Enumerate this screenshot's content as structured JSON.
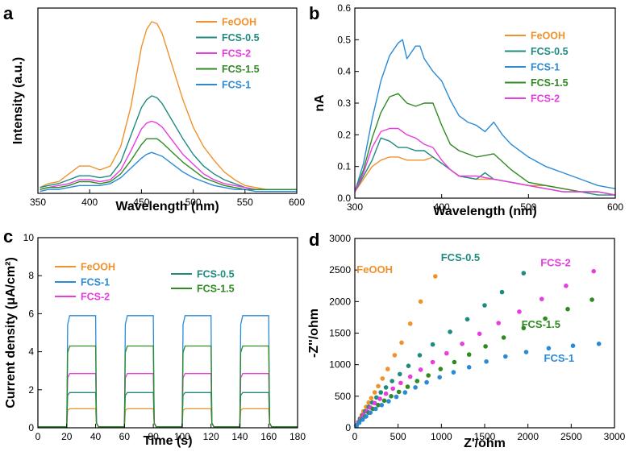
{
  "colors": {
    "FeOOH": "#f0922b",
    "FCS-0.5": "#1f8a80",
    "FCS-2": "#e83ce0",
    "FCS-1.5": "#2f8a22",
    "FCS-1": "#2b8ad6"
  },
  "chart_data": [
    {
      "panel": "a",
      "type": "line",
      "xlabel": "Wavelength (nm)",
      "ylabel": "Intensity (a.u.)",
      "xlim": [
        350,
        600
      ],
      "xticks": [
        350,
        400,
        450,
        500,
        550,
        600
      ],
      "yticks_shown": false,
      "legend_position": "top-right",
      "legend": [
        "FeOOH",
        "FCS-0.5",
        "FCS-2",
        "FCS-1.5",
        "FCS-1"
      ],
      "series": [
        {
          "name": "FeOOH",
          "x": [
            352,
            360,
            370,
            380,
            390,
            400,
            410,
            420,
            430,
            440,
            450,
            455,
            460,
            465,
            470,
            480,
            490,
            500,
            510,
            520,
            530,
            540,
            550,
            560,
            570,
            580,
            590,
            600
          ],
          "y": [
            0.03,
            0.05,
            0.06,
            0.1,
            0.14,
            0.14,
            0.12,
            0.14,
            0.24,
            0.45,
            0.75,
            0.84,
            0.88,
            0.87,
            0.82,
            0.65,
            0.48,
            0.34,
            0.24,
            0.17,
            0.11,
            0.07,
            0.04,
            0.03,
            0.02,
            0.02,
            0.02,
            0.02
          ]
        },
        {
          "name": "FCS-0.5",
          "x": [
            352,
            360,
            370,
            380,
            390,
            400,
            410,
            420,
            430,
            440,
            450,
            455,
            460,
            465,
            470,
            480,
            490,
            500,
            510,
            520,
            530,
            540,
            550,
            560,
            570,
            580,
            590,
            600
          ],
          "y": [
            0.03,
            0.04,
            0.05,
            0.07,
            0.09,
            0.09,
            0.08,
            0.09,
            0.16,
            0.3,
            0.44,
            0.48,
            0.5,
            0.49,
            0.46,
            0.37,
            0.28,
            0.2,
            0.14,
            0.1,
            0.07,
            0.05,
            0.03,
            0.02,
            0.02,
            0.02,
            0.02,
            0.02
          ]
        },
        {
          "name": "FCS-2",
          "x": [
            352,
            360,
            370,
            380,
            390,
            400,
            410,
            420,
            430,
            440,
            450,
            455,
            460,
            465,
            470,
            480,
            490,
            500,
            510,
            520,
            530,
            540,
            550,
            560,
            570,
            580,
            590,
            600
          ],
          "y": [
            0.02,
            0.03,
            0.04,
            0.05,
            0.07,
            0.07,
            0.06,
            0.07,
            0.12,
            0.22,
            0.33,
            0.36,
            0.37,
            0.36,
            0.34,
            0.27,
            0.2,
            0.15,
            0.1,
            0.07,
            0.05,
            0.04,
            0.03,
            0.02,
            0.02,
            0.02,
            0.02,
            0.02
          ]
        },
        {
          "name": "FCS-1.5",
          "x": [
            352,
            360,
            370,
            380,
            390,
            400,
            410,
            420,
            430,
            440,
            450,
            455,
            460,
            465,
            470,
            480,
            490,
            500,
            510,
            520,
            530,
            540,
            550,
            560,
            570,
            580,
            590,
            600
          ],
          "y": [
            0.02,
            0.03,
            0.03,
            0.04,
            0.06,
            0.06,
            0.05,
            0.06,
            0.1,
            0.17,
            0.25,
            0.28,
            0.28,
            0.28,
            0.26,
            0.21,
            0.16,
            0.12,
            0.08,
            0.06,
            0.04,
            0.03,
            0.02,
            0.02,
            0.02,
            0.02,
            0.02,
            0.02
          ]
        },
        {
          "name": "FCS-1",
          "x": [
            352,
            360,
            370,
            380,
            390,
            400,
            410,
            420,
            430,
            440,
            450,
            455,
            460,
            465,
            470,
            480,
            490,
            500,
            510,
            520,
            530,
            540,
            550,
            560,
            570,
            580,
            590,
            600
          ],
          "y": [
            0.01,
            0.02,
            0.02,
            0.03,
            0.04,
            0.04,
            0.04,
            0.05,
            0.08,
            0.13,
            0.18,
            0.2,
            0.21,
            0.2,
            0.19,
            0.15,
            0.11,
            0.08,
            0.06,
            0.04,
            0.03,
            0.02,
            0.02,
            0.01,
            0.01,
            0.01,
            0.01,
            0.01
          ]
        }
      ]
    },
    {
      "panel": "b",
      "type": "line",
      "xlabel": "Wavelength (nm)",
      "ylabel": "nA",
      "xlim": [
        300,
        600
      ],
      "ylim": [
        0,
        0.6
      ],
      "xticks": [
        300,
        400,
        500,
        600
      ],
      "yticks": [
        0.0,
        0.1,
        0.2,
        0.3,
        0.4,
        0.5,
        0.6
      ],
      "legend_position": "top-right",
      "legend": [
        "FeOOH",
        "FCS-0.5",
        "FCS-1",
        "FCS-1.5",
        "FCS-2"
      ],
      "series": [
        {
          "name": "FeOOH",
          "x": [
            300,
            310,
            320,
            330,
            340,
            350,
            360,
            370,
            380,
            390,
            400,
            410,
            420,
            440,
            460,
            480,
            500,
            520,
            540,
            560,
            580,
            600
          ],
          "y": [
            0.02,
            0.06,
            0.1,
            0.12,
            0.13,
            0.13,
            0.12,
            0.12,
            0.12,
            0.13,
            0.11,
            0.09,
            0.07,
            0.06,
            0.06,
            0.05,
            0.04,
            0.04,
            0.03,
            0.02,
            0.02,
            0.01
          ]
        },
        {
          "name": "FCS-0.5",
          "x": [
            300,
            310,
            320,
            330,
            340,
            350,
            360,
            370,
            380,
            390,
            400,
            410,
            420,
            440,
            450,
            460,
            480,
            500,
            520,
            540,
            560,
            580,
            600
          ],
          "y": [
            0.02,
            0.07,
            0.12,
            0.19,
            0.18,
            0.16,
            0.16,
            0.15,
            0.15,
            0.13,
            0.11,
            0.09,
            0.07,
            0.06,
            0.08,
            0.06,
            0.05,
            0.04,
            0.03,
            0.02,
            0.02,
            0.01,
            0.01
          ]
        },
        {
          "name": "FCS-1",
          "x": [
            300,
            310,
            320,
            330,
            340,
            350,
            355,
            360,
            370,
            375,
            380,
            390,
            400,
            410,
            420,
            430,
            440,
            450,
            460,
            470,
            480,
            500,
            520,
            540,
            560,
            580,
            600
          ],
          "y": [
            0.02,
            0.11,
            0.25,
            0.37,
            0.45,
            0.49,
            0.5,
            0.44,
            0.48,
            0.48,
            0.44,
            0.4,
            0.37,
            0.31,
            0.26,
            0.24,
            0.23,
            0.21,
            0.24,
            0.2,
            0.17,
            0.13,
            0.1,
            0.08,
            0.06,
            0.04,
            0.03
          ]
        },
        {
          "name": "FCS-1.5",
          "x": [
            300,
            310,
            320,
            330,
            340,
            350,
            360,
            370,
            380,
            390,
            400,
            410,
            420,
            440,
            460,
            480,
            500,
            520,
            540,
            560,
            580,
            600
          ],
          "y": [
            0.02,
            0.09,
            0.19,
            0.27,
            0.32,
            0.33,
            0.3,
            0.29,
            0.3,
            0.3,
            0.23,
            0.17,
            0.15,
            0.13,
            0.14,
            0.09,
            0.05,
            0.04,
            0.03,
            0.02,
            0.02,
            0.01
          ]
        },
        {
          "name": "FCS-2",
          "x": [
            300,
            310,
            320,
            330,
            340,
            350,
            360,
            370,
            380,
            390,
            400,
            410,
            420,
            440,
            460,
            480,
            500,
            520,
            540,
            560,
            580,
            600
          ],
          "y": [
            0.02,
            0.08,
            0.16,
            0.21,
            0.22,
            0.22,
            0.2,
            0.19,
            0.17,
            0.16,
            0.12,
            0.09,
            0.07,
            0.07,
            0.06,
            0.05,
            0.04,
            0.03,
            0.02,
            0.02,
            0.02,
            0.01
          ]
        }
      ]
    },
    {
      "panel": "c",
      "type": "line",
      "xlabel": "Time (s)",
      "ylabel": "Current density (μA/cm²)",
      "xlim": [
        0,
        180
      ],
      "ylim": [
        0,
        10
      ],
      "xticks": [
        0,
        20,
        40,
        60,
        80,
        100,
        120,
        140,
        160,
        180
      ],
      "yticks": [
        0,
        2,
        4,
        6,
        8,
        10
      ],
      "on_intervals": [
        [
          20,
          40
        ],
        [
          60,
          80
        ],
        [
          100,
          120
        ],
        [
          140,
          160
        ]
      ],
      "legend": [
        "FeOOH",
        "FCS-1",
        "FCS-2",
        "FCS-0.5",
        "FCS-1.5"
      ],
      "series": [
        {
          "name": "FeOOH",
          "on_value": 1.0,
          "off_value": 0.05
        },
        {
          "name": "FCS-1",
          "on_value": 5.9,
          "off_value": 0.05
        },
        {
          "name": "FCS-2",
          "on_value": 2.85,
          "off_value": 0.05
        },
        {
          "name": "FCS-0.5",
          "on_value": 1.85,
          "off_value": 0.05
        },
        {
          "name": "FCS-1.5",
          "on_value": 4.3,
          "off_value": 0.05
        }
      ]
    },
    {
      "panel": "d",
      "type": "scatter",
      "xlabel": "Z'/ohm",
      "ylabel": "-Z''/ohm",
      "xlim": [
        0,
        3000
      ],
      "ylim": [
        0,
        3000
      ],
      "xticks": [
        0,
        500,
        1000,
        1500,
        2000,
        2500,
        3000
      ],
      "yticks": [
        0,
        500,
        1000,
        1500,
        2000,
        2500,
        3000
      ],
      "series": [
        {
          "name": "FeOOH",
          "x": [
            20,
            40,
            60,
            80,
            100,
            130,
            160,
            190,
            230,
            270,
            320,
            380,
            460,
            540,
            640,
            760,
            930
          ],
          "y": [
            40,
            90,
            150,
            200,
            260,
            330,
            400,
            470,
            560,
            660,
            780,
            930,
            1150,
            1350,
            1650,
            2000,
            2400
          ]
        },
        {
          "name": "FCS-0.5",
          "x": [
            20,
            40,
            60,
            90,
            120,
            160,
            200,
            250,
            300,
            360,
            430,
            520,
            620,
            750,
            900,
            1100,
            1300,
            1500,
            1700,
            1950
          ],
          "y": [
            40,
            90,
            140,
            200,
            260,
            330,
            400,
            480,
            560,
            640,
            740,
            850,
            980,
            1150,
            1320,
            1520,
            1720,
            1940,
            2150,
            2450
          ]
        },
        {
          "name": "FCS-2",
          "x": [
            20,
            40,
            70,
            100,
            140,
            180,
            230,
            290,
            360,
            440,
            530,
            640,
            760,
            900,
            1060,
            1240,
            1440,
            1660,
            1900,
            2160,
            2440,
            2760
          ],
          "y": [
            40,
            80,
            140,
            200,
            260,
            320,
            390,
            460,
            540,
            620,
            710,
            810,
            920,
            1040,
            1180,
            1330,
            1490,
            1660,
            1840,
            2040,
            2250,
            2480
          ]
        },
        {
          "name": "FCS-1.5",
          "x": [
            20,
            50,
            80,
            120,
            160,
            210,
            270,
            340,
            420,
            510,
            610,
            720,
            850,
            990,
            1150,
            1320,
            1510,
            1720,
            1950,
            2200,
            2460,
            2740
          ],
          "y": [
            30,
            80,
            130,
            180,
            240,
            300,
            360,
            430,
            500,
            570,
            650,
            740,
            830,
            930,
            1040,
            1160,
            1290,
            1430,
            1580,
            1730,
            1880,
            2030
          ]
        },
        {
          "name": "FCS-1",
          "x": [
            20,
            50,
            90,
            130,
            180,
            240,
            310,
            390,
            480,
            580,
            700,
            830,
            980,
            1140,
            1320,
            1520,
            1740,
            1980,
            2240,
            2520,
            2820
          ],
          "y": [
            30,
            80,
            130,
            180,
            240,
            300,
            360,
            420,
            490,
            560,
            640,
            720,
            800,
            880,
            960,
            1050,
            1130,
            1200,
            1260,
            1300,
            1330
          ]
        }
      ],
      "annotations": [
        {
          "text": "FeOOH",
          "series": "FeOOH",
          "x": 230,
          "y": 2450
        },
        {
          "text": "FCS-0.5",
          "series": "FCS-0.5",
          "x": 1220,
          "y": 2640
        },
        {
          "text": "FCS-2",
          "series": "FCS-2",
          "x": 2320,
          "y": 2560
        },
        {
          "text": "FCS-1.5",
          "series": "FCS-1.5",
          "x": 2150,
          "y": 1580
        },
        {
          "text": "FCS-1",
          "series": "FCS-1",
          "x": 2360,
          "y": 1050
        }
      ]
    }
  ],
  "panel_labels": [
    "a",
    "b",
    "c",
    "d"
  ]
}
